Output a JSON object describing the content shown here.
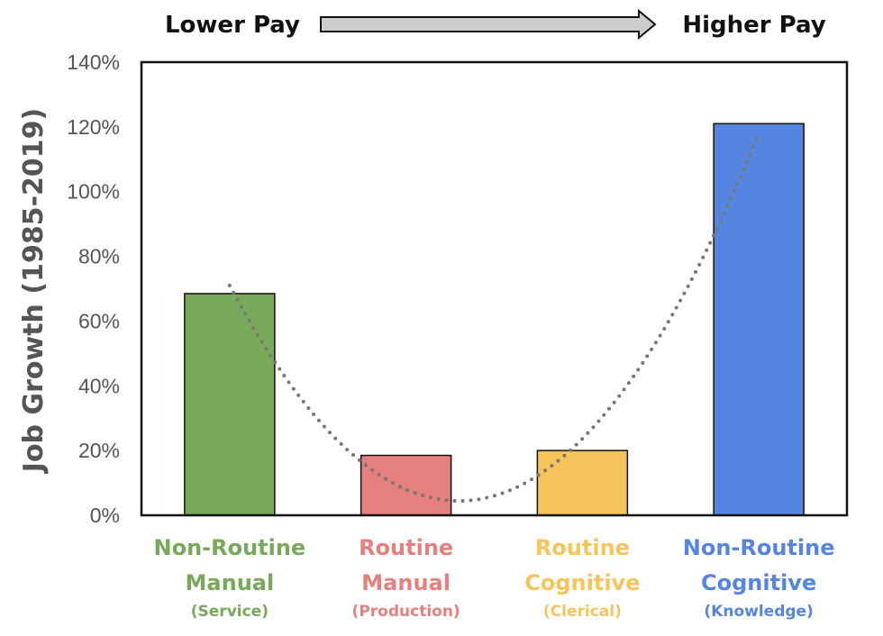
{
  "header": {
    "lower_pay": "Lower Pay",
    "higher_pay": "Higher Pay"
  },
  "chart_data": {
    "type": "bar",
    "ylabel": "Job Growth (1985-2019)",
    "xlabel": "",
    "ylim": [
      0,
      140
    ],
    "yticks": [
      "0%",
      "20%",
      "40%",
      "60%",
      "80%",
      "100%",
      "120%",
      "140%"
    ],
    "y_unit": "percent",
    "categories": [
      {
        "line1": "Non-Routine",
        "line2": "Manual",
        "sub": "(Service)",
        "color": "#78a85a"
      },
      {
        "line1": "Routine",
        "line2": "Manual",
        "sub": "(Production)",
        "color": "#e6807e"
      },
      {
        "line1": "Routine",
        "line2": "Cognitive",
        "sub": "(Clerical)",
        "color": "#f5c45a"
      },
      {
        "line1": "Non-Routine",
        "line2": "Cognitive",
        "sub": "(Knowledge)",
        "color": "#5585e0"
      }
    ],
    "values": [
      68.5,
      18.5,
      20,
      121
    ],
    "trendline": {
      "style": "dotted",
      "shape": "quadratic",
      "color": "#777777",
      "points": [
        [
          0,
          71
        ],
        [
          1,
          8
        ],
        [
          3,
          118
        ]
      ]
    },
    "grid": false,
    "legend": "none",
    "arrow": {
      "direction": "right",
      "color": "#cccccc"
    }
  }
}
